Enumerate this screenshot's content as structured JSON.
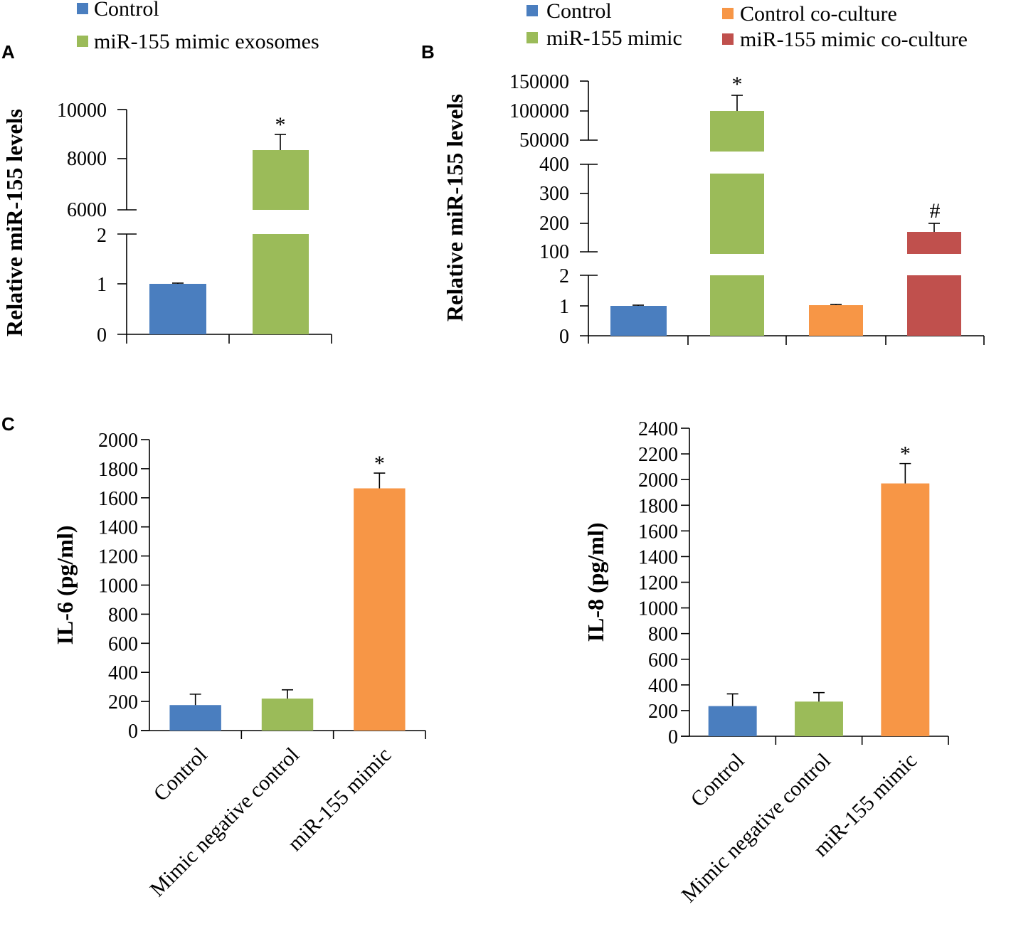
{
  "colors": {
    "blue": "#4a7ebf",
    "green": "#9bbb59",
    "orange": "#f79646",
    "red": "#c0504d",
    "axis": "#000000"
  },
  "panels": {
    "A": {
      "letter": "A"
    },
    "B": {
      "letter": "B"
    },
    "C": {
      "letter": "C"
    }
  },
  "chart_data": [
    {
      "id": "A",
      "type": "bar",
      "title": "",
      "ylabel": "Relative miR-155 levels",
      "xlabel": "",
      "axis_break": true,
      "segments": [
        {
          "range": [
            0,
            2
          ],
          "ticks": [
            "0",
            "1",
            "2"
          ]
        },
        {
          "range": [
            6000,
            10000
          ],
          "ticks": [
            "6000",
            "8000",
            "10000"
          ]
        }
      ],
      "legend": [
        "Control",
        "miR-155 mimic exosomes"
      ],
      "series": [
        {
          "name": "Control",
          "value": 1,
          "error": 0.02,
          "significance": ""
        },
        {
          "name": "miR-155 mimic exosomes",
          "value": 8350,
          "error": 650,
          "significance": "*"
        }
      ]
    },
    {
      "id": "B",
      "type": "bar",
      "title": "",
      "ylabel": "Relative miR-155 levels",
      "xlabel": "",
      "axis_break": true,
      "segments": [
        {
          "range": [
            0,
            2
          ],
          "ticks": [
            "0",
            "1",
            "2"
          ]
        },
        {
          "range": [
            100,
            400
          ],
          "ticks": [
            "100",
            "200",
            "300",
            "400"
          ]
        },
        {
          "range": [
            50000,
            150000
          ],
          "ticks": [
            "50000",
            "100000",
            "150000"
          ]
        }
      ],
      "legend": [
        "Control",
        "Control co-culture",
        "miR-155 mimic",
        "miR-155 mimic co-culture"
      ],
      "series": [
        {
          "name": "Control",
          "value": 1,
          "error": 0.02,
          "significance": ""
        },
        {
          "name": "miR-155 mimic",
          "value": 100000,
          "error": 27000,
          "significance": "*"
        },
        {
          "name": "Control co-culture",
          "value": 1,
          "error": 0.02,
          "significance": ""
        },
        {
          "name": "miR-155 mimic co-culture",
          "value": 168,
          "error": 30,
          "significance": "#"
        }
      ]
    },
    {
      "id": "C1",
      "type": "bar",
      "title": "",
      "ylabel": "IL-6 (pg/ml)",
      "xlabel": "",
      "ylim": [
        0,
        2000
      ],
      "yticks": [
        "0",
        "200",
        "400",
        "600",
        "800",
        "1000",
        "1200",
        "1400",
        "1600",
        "1800",
        "2000"
      ],
      "categories": [
        "Control",
        "Mimic negative control",
        "miR-155 mimic"
      ],
      "values": [
        175,
        220,
        1665
      ],
      "errors": [
        75,
        60,
        105
      ],
      "significance": [
        "",
        "",
        "*"
      ]
    },
    {
      "id": "C2",
      "type": "bar",
      "title": "",
      "ylabel": "IL-8 (pg/ml)",
      "xlabel": "",
      "ylim": [
        0,
        2400
      ],
      "yticks": [
        "0",
        "200",
        "400",
        "600",
        "800",
        "1000",
        "1200",
        "1400",
        "1600",
        "1800",
        "2000",
        "2200",
        "2400"
      ],
      "categories": [
        "Control",
        "Mimic negative control",
        "miR-155 mimic"
      ],
      "values": [
        235,
        270,
        1970
      ],
      "errors": [
        95,
        70,
        155
      ],
      "significance": [
        "",
        "",
        "*"
      ]
    }
  ]
}
